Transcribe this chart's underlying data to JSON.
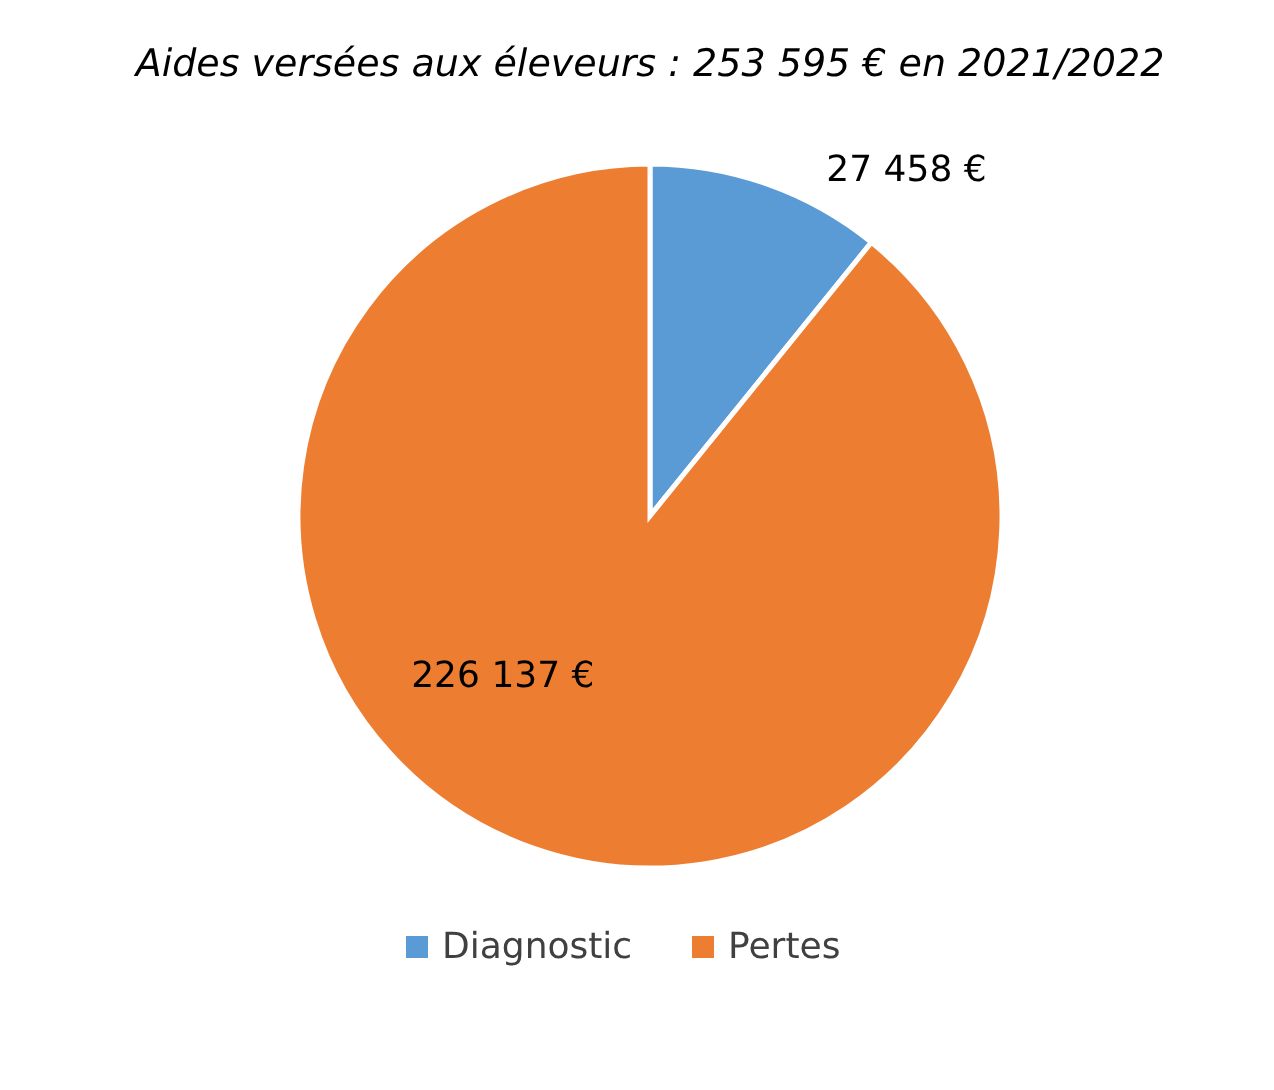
{
  "chart_data": {
    "type": "pie",
    "title": "Aides versées aux éleveurs : 253 595 € en 2021/2022",
    "categories": [
      "Diagnostic",
      "Pertes"
    ],
    "values": [
      27458,
      226137
    ],
    "colors": [
      "#5b9bd5",
      "#ed7d31"
    ],
    "value_labels": [
      "27 458 €",
      "226 137 €"
    ],
    "legend": "bottom"
  }
}
